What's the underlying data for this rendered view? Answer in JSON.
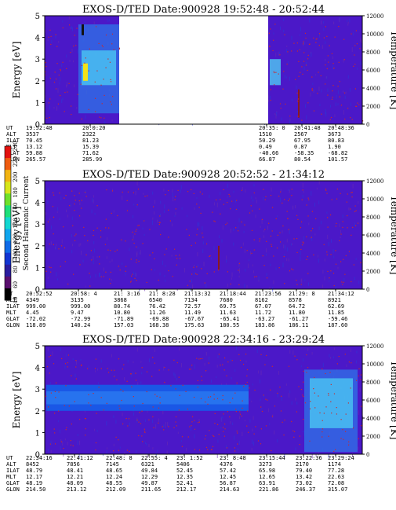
{
  "chart_data": [
    {
      "type": "heatmap",
      "title": "EXOS-D/TED   Date:900928  19:52:48 - 20:52:44",
      "ylabel": "Energy [eV]",
      "y2label": "Temperature [K]",
      "ylim": [
        0,
        5
      ],
      "y2lim": [
        0,
        12000
      ],
      "yticks": [
        "0",
        "1",
        "2",
        "3",
        "4",
        "5"
      ],
      "y2ticks": [
        "0",
        "2000",
        "4000",
        "6000",
        "8000",
        "10000",
        "12000"
      ],
      "data_gap": {
        "from": "20:0:20",
        "to": "20:35:0"
      },
      "table": {
        "row_labels": [
          "UT",
          "ALT",
          "ILAT",
          "MLT",
          "GLAT",
          "GLON"
        ],
        "columns": [
          [
            "19:52:48",
            "3537",
            "70.45",
            "13.12",
            "59.88",
            "265.57"
          ],
          [
            "20:0:20",
            "2322",
            "81.23",
            "15.39",
            "71.62",
            "285.99"
          ],
          [
            "20:35: 0",
            "1510",
            "50.29",
            "0.49",
            "-40.66",
            "66.87"
          ],
          [
            "20:41:48",
            "2567",
            "67.95",
            "0.87",
            "-58.35",
            "80.54"
          ],
          [
            "20:48:36",
            "3673",
            "80.83",
            "1.90",
            "-68.82",
            "101.57"
          ]
        ]
      }
    },
    {
      "type": "heatmap",
      "title": "EXOS-D/TED   Date:900928  20:52:52 - 21:34:12",
      "ylabel": "Energy [eV]",
      "y2label": "Temperature [K]",
      "ylim": [
        0,
        5
      ],
      "y2lim": [
        0,
        12000
      ],
      "yticks": [
        "0",
        "1",
        "2",
        "3",
        "4",
        "5"
      ],
      "y2ticks": [
        "0",
        "2000",
        "4000",
        "6000",
        "8000",
        "10000",
        "12000"
      ],
      "table": {
        "row_labels": [
          "UT",
          "ALT",
          "ILAT",
          "MLT",
          "GLAT",
          "GLON"
        ],
        "columns": [
          [
            "20:52:52",
            "4349",
            "999.00",
            "4.45",
            "-72.02",
            "118.89"
          ],
          [
            "20:58: 4",
            "3135",
            "999.00",
            "9.47",
            "-72.99",
            "140.24"
          ],
          [
            "21: 3:16",
            "3868",
            "80.74",
            "10.80",
            "-71.89",
            "157.03"
          ],
          [
            "21: 8:28",
            "6540",
            "76.42",
            "11.26",
            "-69.88",
            "168.38"
          ],
          [
            "21:13:32",
            "7134",
            "72.57",
            "11.49",
            "-67.67",
            "175.63"
          ],
          [
            "21:18:44",
            "7680",
            "69.75",
            "11.63",
            "-65.41",
            "180.55"
          ],
          [
            "21:23:56",
            "8162",
            "67.07",
            "11.72",
            "-63.27",
            "183.86"
          ],
          [
            "21:29: 8",
            "8578",
            "64.72",
            "11.80",
            "-61.27",
            "186.11"
          ],
          [
            "21:34:12",
            "8921",
            "62.69",
            "11.85",
            "-59.46",
            "187.60"
          ]
        ]
      }
    },
    {
      "type": "heatmap",
      "title": "EXOS-D/TED   Date:900928  22:34:16 - 23:29:24",
      "ylabel": "Energy [eV]",
      "y2label": "Temperature [K]",
      "ylim": [
        0,
        5
      ],
      "y2lim": [
        0,
        12000
      ],
      "yticks": [
        "0",
        "1",
        "2",
        "3",
        "4",
        "5"
      ],
      "y2ticks": [
        "0",
        "2000",
        "4000",
        "6000",
        "8000",
        "10000",
        "12000"
      ],
      "table": {
        "row_labels": [
          "UT",
          "ALT",
          "ILAT",
          "MLT",
          "GLAT",
          "GLON"
        ],
        "columns": [
          [
            "22:34:16",
            "8452",
            "48.79",
            "12.17",
            "48.19",
            "214.50"
          ],
          [
            "22:41:12",
            "7856",
            "48.41",
            "12.21",
            "48.09",
            "213.12"
          ],
          [
            "22:48: 8",
            "7145",
            "48.65",
            "12.24",
            "48.55",
            "212.09"
          ],
          [
            "22:55: 4",
            "6321",
            "49.84",
            "12.29",
            "49.87",
            "211.65"
          ],
          [
            "23: 1:52",
            "5406",
            "52.45",
            "12.35",
            "52.41",
            "212.17"
          ],
          [
            "23: 8:48",
            "4376",
            "57.42",
            "12.45",
            "56.87",
            "214.63"
          ],
          [
            "23:15:44",
            "3273",
            "65.98",
            "12.65",
            "63.91",
            "221.86"
          ],
          [
            "23:22:36",
            "2170",
            "79.40",
            "13.42",
            "73.02",
            "246.37"
          ],
          [
            "23:29:24",
            "1174",
            "77.28",
            "22.63",
            "72.08",
            "315.07"
          ]
        ]
      }
    }
  ],
  "colorbar": {
    "label": "Second Harmonic Current",
    "ticks": [
      "40",
      "60",
      "80",
      "100",
      "120",
      "140",
      "160",
      "180",
      "200",
      "220",
      "240"
    ],
    "colors": [
      "#000000",
      "#5a0f6e",
      "#2a1d9e",
      "#1235d2",
      "#0f6be8",
      "#10a6ee",
      "#13d7d1",
      "#1ee07a",
      "#6fe12a",
      "#d7e61a",
      "#f2b412",
      "#ef5c10",
      "#e3120f"
    ]
  },
  "colors": {
    "background": "#4b18c8",
    "gap": "#ffffff",
    "signal": "#4fd6f5",
    "trace": "#cc2a2a"
  }
}
